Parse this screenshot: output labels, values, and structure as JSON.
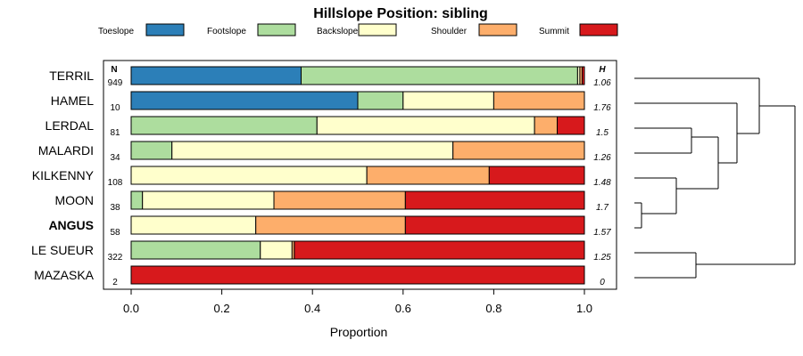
{
  "chart_data": {
    "type": "bar",
    "stacked": true,
    "orientation": "horizontal",
    "title": "Hillslope Position: sibling",
    "xlabel": "Proportion",
    "xlim": [
      0,
      1
    ],
    "x_ticks": [
      "0.0",
      "0.2",
      "0.4",
      "0.6",
      "0.8",
      "1.0"
    ],
    "legend_position": "top",
    "n_header": "N",
    "h_header": "H",
    "legend": [
      {
        "name": "Toeslope",
        "color": "#2c7fb8"
      },
      {
        "name": "Footslope",
        "color": "#addd9e"
      },
      {
        "name": "Backslope",
        "color": "#ffffcc"
      },
      {
        "name": "Shoulder",
        "color": "#fdae6b"
      },
      {
        "name": "Summit",
        "color": "#d7191c"
      }
    ],
    "rows": [
      {
        "label": "TERRIL",
        "bold": false,
        "n": "949",
        "h": "1.06",
        "values": [
          0.375,
          0.61,
          0.005,
          0.005,
          0.005
        ]
      },
      {
        "label": "HAMEL",
        "bold": false,
        "n": "10",
        "h": "1.76",
        "values": [
          0.5,
          0.1,
          0.2,
          0.2,
          0.0
        ]
      },
      {
        "label": "LERDAL",
        "bold": false,
        "n": "81",
        "h": "1.5",
        "values": [
          0.0,
          0.41,
          0.48,
          0.05,
          0.06
        ]
      },
      {
        "label": "MALARDI",
        "bold": false,
        "n": "34",
        "h": "1.26",
        "values": [
          0.0,
          0.09,
          0.62,
          0.29,
          0.0
        ]
      },
      {
        "label": "KILKENNY",
        "bold": false,
        "n": "108",
        "h": "1.48",
        "values": [
          0.0,
          0.0,
          0.52,
          0.27,
          0.21
        ]
      },
      {
        "label": "MOON",
        "bold": false,
        "n": "38",
        "h": "1.7",
        "values": [
          0.0,
          0.025,
          0.29,
          0.29,
          0.395
        ]
      },
      {
        "label": "ANGUS",
        "bold": true,
        "n": "58",
        "h": "1.57",
        "values": [
          0.0,
          0.0,
          0.275,
          0.33,
          0.395
        ]
      },
      {
        "label": "LE SUEUR",
        "bold": false,
        "n": "322",
        "h": "1.25",
        "values": [
          0.0,
          0.285,
          0.07,
          0.005,
          0.64
        ]
      },
      {
        "label": "MAZASKA",
        "bold": false,
        "n": "2",
        "h": "0",
        "values": [
          0.0,
          0.0,
          0.0,
          0.0,
          1.0
        ]
      }
    ]
  }
}
